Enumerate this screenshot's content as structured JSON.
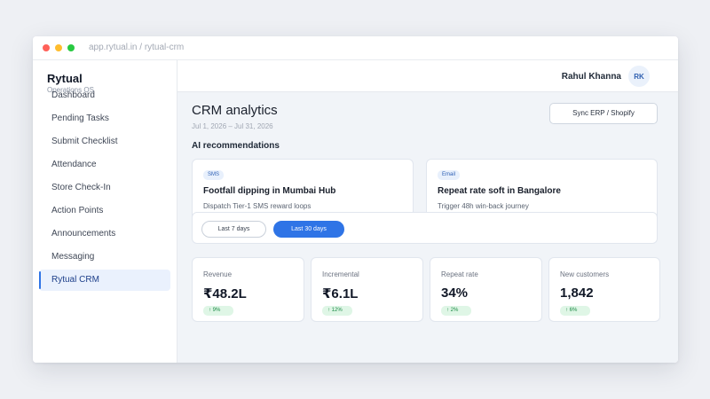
{
  "browser": {
    "url": "app.rytual.in / rytual-crm"
  },
  "sidebar": {
    "brand": "Rytual",
    "brand_sub": "Operations OS",
    "items": [
      {
        "label": "Dashboard"
      },
      {
        "label": "Pending Tasks"
      },
      {
        "label": "Submit Checklist"
      },
      {
        "label": "Attendance"
      },
      {
        "label": "Store Check-In"
      },
      {
        "label": "Action Points"
      },
      {
        "label": "Announcements"
      },
      {
        "label": "Messaging"
      },
      {
        "label": "Rytual CRM",
        "active": true
      }
    ]
  },
  "header": {
    "user_name": "Rahul Khanna",
    "user_initials": "RK"
  },
  "main": {
    "title": "CRM analytics",
    "date_range": "Jul 1, 2026 – Jul 31, 2026",
    "sync_button": "Sync ERP / Shopify",
    "recommendations_title": "AI recommendations",
    "recommendations": [
      {
        "tag": "SMS",
        "title": "Footfall dipping in Mumbai Hub",
        "desc": "Dispatch Tier-1 SMS reward loops"
      },
      {
        "tag": "Email",
        "title": "Repeat rate soft in Bangalore",
        "desc": "Trigger 48h win-back journey"
      }
    ],
    "filters": [
      {
        "label": "Last 7 days",
        "selected": false
      },
      {
        "label": "Last 30 days",
        "selected": true
      }
    ],
    "metrics": [
      {
        "label": "Revenue",
        "value": "₹48.2L",
        "delta": "↑ 9%"
      },
      {
        "label": "Incremental",
        "value": "₹6.1L",
        "delta": "↑ 12%"
      },
      {
        "label": "Repeat rate",
        "value": "34%",
        "delta": "↑ 2%"
      },
      {
        "label": "New customers",
        "value": "1,842",
        "delta": "↑ 6%"
      }
    ]
  },
  "colors": {
    "accent": "#2f74e6",
    "positive_bg": "#dff6e6",
    "positive_text": "#1b8a45",
    "tag_bg": "#e8f0fc"
  }
}
